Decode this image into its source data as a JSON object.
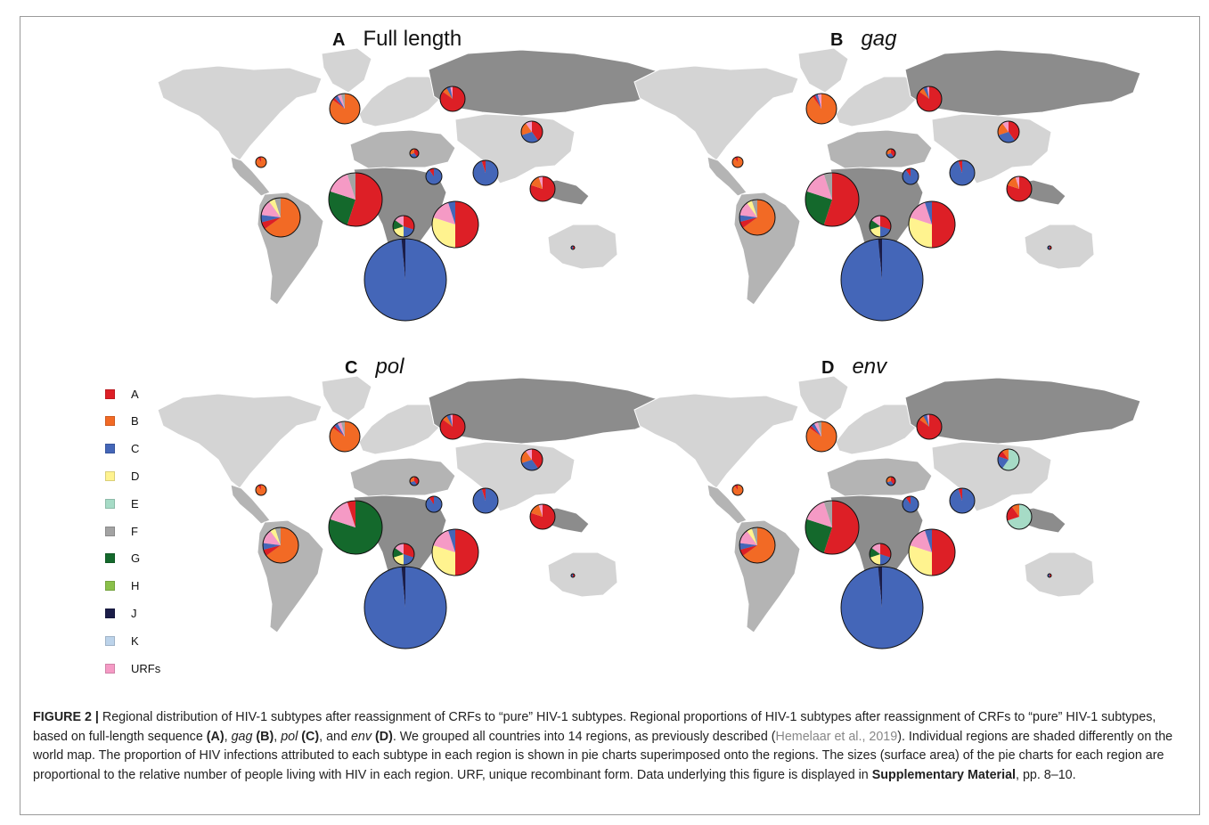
{
  "panels": [
    {
      "letter": "A",
      "name": "Full length",
      "italic": false
    },
    {
      "letter": "B",
      "name": "gag",
      "italic": true
    },
    {
      "letter": "C",
      "name": "pol",
      "italic": true
    },
    {
      "letter": "D",
      "name": "env",
      "italic": true
    }
  ],
  "legend": [
    {
      "label": "A",
      "color": "#dd1f26"
    },
    {
      "label": "B",
      "color": "#f26a25"
    },
    {
      "label": "C",
      "color": "#4466b8"
    },
    {
      "label": "D",
      "color": "#fff38f"
    },
    {
      "label": "E",
      "color": "#a6dbc6"
    },
    {
      "label": "F",
      "color": "#a3a3a3"
    },
    {
      "label": "G",
      "color": "#14692c"
    },
    {
      "label": "H",
      "color": "#8ac04a"
    },
    {
      "label": "J",
      "color": "#1b1d48"
    },
    {
      "label": "K",
      "color": "#bcd3ea"
    },
    {
      "label": "URFs",
      "color": "#f59ac5"
    }
  ],
  "caption": {
    "label": "FIGURE 2 |",
    "t1": " Regional distribution of HIV-1 subtypes after reassignment of CRFs to “pure” HIV-1 subtypes. Regional proportions of HIV-1 subtypes after reassignment of CRFs to “pure” HIV-1 subtypes, based on full-length sequence ",
    "b1": "(A)",
    "t2": ", ",
    "i1": "gag",
    "t3": " ",
    "b2": "(B)",
    "t4": ", ",
    "i2": "pol",
    "t5": " ",
    "b3": "(C)",
    "t6": ", and ",
    "i3": "env",
    "t7": " ",
    "b4": "(D)",
    "t8": ". We grouped all countries into 14 regions, as previously described (",
    "link": "Hemelaar et al., 2019",
    "t9": "). Individual regions are shaded differently on the world map. The proportion of HIV infections attributed to each subtype in each region is shown in pie charts superimposed onto the regions. The sizes (surface area) of the pie charts for each region are proportional to the relative number of people living with HIV in each region. URF, unique recombinant form. Data underlying this figure is displayed in ",
    "b5": "Supplementary Material",
    "t10": ", pp. 8–10."
  }
}
